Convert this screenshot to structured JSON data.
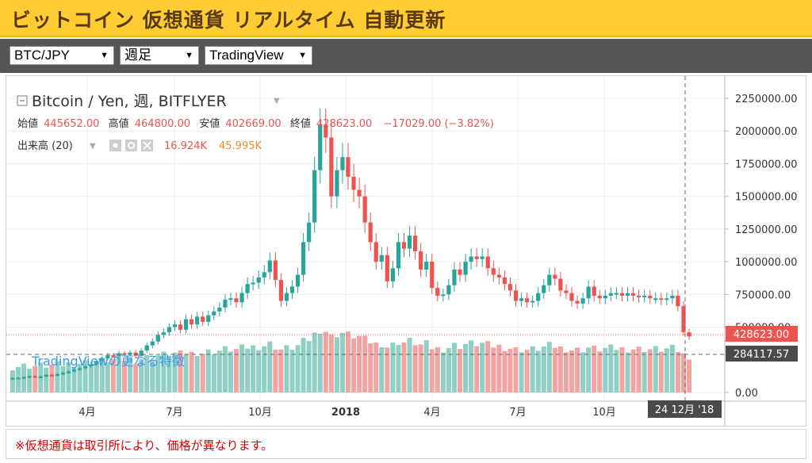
{
  "header": {
    "title": "ビットコイン 仮想通貨 リアルタイム 自動更新"
  },
  "toolbar": {
    "pair_select": "BTC/JPY",
    "interval_select": "週足",
    "source_select": "TradingView",
    "dropdown_glyph": "▼"
  },
  "chart": {
    "symbol_title": "Bitcoin / Yen, 週, BITFLYER",
    "ohlc": {
      "open_label": "始値",
      "open_value": "445652.00",
      "high_label": "高値",
      "high_value": "464800.00",
      "low_label": "安値",
      "low_value": "402669.00",
      "close_label": "終値",
      "close_value": "428623.00",
      "change": "−17029.00 (−3.82%)"
    },
    "volume": {
      "label": "出来高 (20)",
      "value_1": "16.924K",
      "value_2": "45.995K"
    },
    "watermark_link": "TradingViewの更なる特徴",
    "price_tag": "428623.00",
    "crosshair_price": "284117.57",
    "crosshair_date": "24 12月 '18",
    "colors": {
      "up": "#26a69a",
      "down": "#ef5350",
      "vol_up": "#8fcfc4",
      "vol_down": "#f4a3a3",
      "link": "#3d9ae8"
    }
  },
  "chart_data": {
    "type": "candlestick",
    "title": "Bitcoin / Yen, 週, BITFLYER",
    "x_tick_labels": [
      "4月",
      "7月",
      "10月",
      "2018",
      "4月",
      "7月",
      "10月"
    ],
    "y_tick_labels": [
      "2250000.00",
      "2000000.00",
      "1750000.00",
      "1500000.00",
      "1250000.00",
      "1000000.00",
      "750000.00",
      "500000.00",
      "0.00"
    ],
    "y_ticks": [
      2250000,
      2000000,
      1750000,
      1500000,
      1250000,
      1000000,
      750000,
      500000,
      0
    ],
    "ylim": [
      0,
      2300000
    ],
    "grid": true,
    "series": [
      {
        "name": "BTC/JPY",
        "close": [
          110000,
          112000,
          118000,
          125000,
          120000,
          122000,
          135000,
          130000,
          140000,
          150000,
          160000,
          175000,
          185000,
          200000,
          215000,
          240000,
          260000,
          285000,
          280000,
          300000,
          290000,
          305000,
          280000,
          320000,
          360000,
          390000,
          440000,
          460000,
          500000,
          520000,
          480000,
          560000,
          520000,
          580000,
          540000,
          590000,
          620000,
          650000,
          710000,
          720000,
          690000,
          760000,
          830000,
          840000,
          880000,
          920000,
          1010000,
          860000,
          700000,
          760000,
          810000,
          900000,
          1150000,
          1300000,
          1700000,
          2050000,
          1950000,
          1500000,
          1700000,
          1800000,
          1650000,
          1550000,
          1500000,
          1300000,
          1150000,
          1000000,
          1050000,
          850000,
          950000,
          1150000,
          1100000,
          1200000,
          1080000,
          940000,
          1000000,
          800000,
          740000,
          750000,
          820000,
          940000,
          900000,
          1000000,
          1040000,
          1020000,
          1040000,
          950000,
          900000,
          880000,
          830000,
          780000,
          700000,
          720000,
          690000,
          700000,
          760000,
          820000,
          900000,
          870000,
          780000,
          760000,
          700000,
          680000,
          720000,
          810000,
          740000,
          720000,
          740000,
          760000,
          760000,
          740000,
          760000,
          740000,
          730000,
          740000,
          720000,
          720000,
          710000,
          720000,
          740000,
          660000,
          460000,
          428623
        ],
        "direction": [
          "up",
          "up",
          "up",
          "up",
          "down",
          "up",
          "up",
          "down",
          "up",
          "up",
          "up",
          "up",
          "up",
          "up",
          "up",
          "up",
          "up",
          "up",
          "down",
          "up",
          "down",
          "up",
          "down",
          "up",
          "up",
          "up",
          "up",
          "up",
          "up",
          "up",
          "down",
          "up",
          "down",
          "up",
          "down",
          "up",
          "up",
          "up",
          "up",
          "up",
          "down",
          "up",
          "up",
          "up",
          "up",
          "up",
          "up",
          "down",
          "down",
          "up",
          "up",
          "up",
          "up",
          "up",
          "up",
          "up",
          "down",
          "down",
          "up",
          "up",
          "down",
          "down",
          "down",
          "down",
          "down",
          "down",
          "up",
          "down",
          "up",
          "up",
          "down",
          "up",
          "down",
          "down",
          "up",
          "down",
          "down",
          "up",
          "up",
          "up",
          "down",
          "up",
          "up",
          "down",
          "up",
          "down",
          "down",
          "down",
          "down",
          "down",
          "down",
          "up",
          "down",
          "up",
          "up",
          "up",
          "up",
          "down",
          "down",
          "down",
          "down",
          "down",
          "up",
          "up",
          "down",
          "down",
          "up",
          "up",
          "up",
          "down",
          "up",
          "down",
          "down",
          "up",
          "down",
          "up",
          "down",
          "up",
          "up",
          "down",
          "down",
          "down"
        ]
      }
    ]
  },
  "footer": {
    "note": "※仮想通貨は取引所により、価格が異なります。"
  }
}
